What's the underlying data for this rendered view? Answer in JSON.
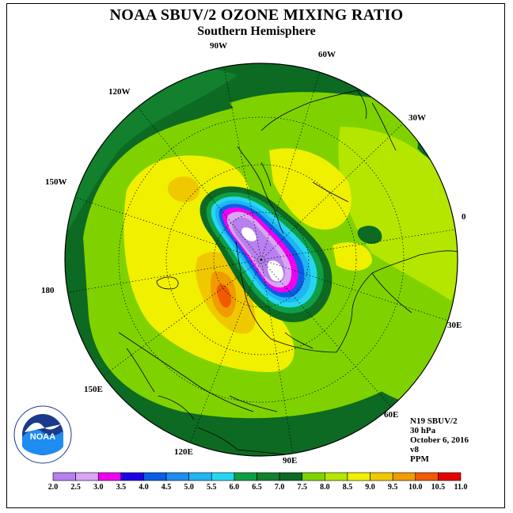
{
  "title": "NOAA SBUV/2 OZONE MIXING RATIO",
  "subtitle": "Southern Hemisphere",
  "longitude_labels": [
    "90W",
    "60W",
    "30W",
    "0",
    "30E",
    "60E",
    "90E",
    "120E",
    "150E",
    "180",
    "150W",
    "120W"
  ],
  "info": {
    "satellite": "N19 SBUV/2",
    "pressure": "30 hPa",
    "date": "October 6, 2016",
    "version": "v8",
    "units": "PPM"
  },
  "logo_text": "NOAA",
  "legend": {
    "ticks": [
      "2.0",
      "2.5",
      "3.0",
      "3.5",
      "4.0",
      "4.5",
      "5.0",
      "5.5",
      "6.0",
      "6.5",
      "7.0",
      "7.5",
      "8.0",
      "8.5",
      "9.0",
      "9.5",
      "10.0",
      "10.5",
      "11.0"
    ],
    "colors": [
      "#b77fef",
      "#d8a6f3",
      "#ef00ef",
      "#1e00e6",
      "#0a5de6",
      "#1e8cf0",
      "#20b4f0",
      "#26d6f0",
      "#0f9e45",
      "#12802d",
      "#0d6a22",
      "#7fd200",
      "#b4e600",
      "#f0f000",
      "#f0c800",
      "#f09b00",
      "#f05a00",
      "#e60000",
      "#8c4b32"
    ]
  },
  "colors": {
    "ocean_base": "#0d6a22",
    "coast": "#000000"
  }
}
